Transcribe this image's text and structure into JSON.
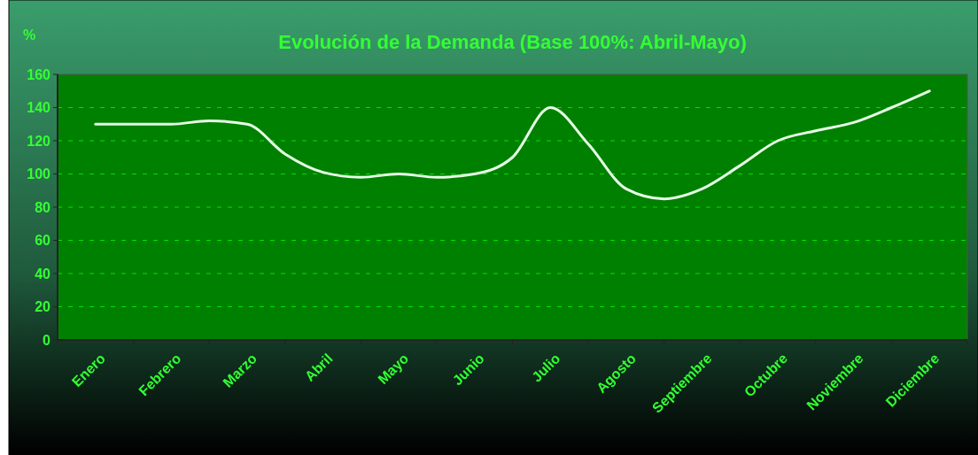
{
  "chart_data": {
    "type": "line",
    "title": "Evolución de la Demanda (Base 100%: Abril-Mayo)",
    "ylabel": "%",
    "categories": [
      "Enero",
      null,
      "Febrero",
      null,
      "Marzo",
      null,
      "Abril",
      null,
      "Mayo",
      null,
      "Junio",
      null,
      "Julio",
      null,
      "Agosto",
      null,
      "Septiembre",
      null,
      "Octubre",
      null,
      "Noviembre",
      null,
      "Diciembre"
    ],
    "series": [
      {
        "color": "#e6ffe6",
        "values": [
          130,
          130,
          130,
          132,
          130,
          112,
          101,
          98,
          100,
          98,
          100,
          110,
          140,
          118,
          91,
          85,
          91,
          105,
          120,
          126,
          131,
          140,
          150
        ]
      }
    ],
    "ylim": [
      0,
      160
    ],
    "yticks": [
      0,
      20,
      40,
      60,
      80,
      100,
      120,
      140,
      160
    ],
    "grid": "y",
    "marker": "none",
    "line_style": "solid"
  }
}
